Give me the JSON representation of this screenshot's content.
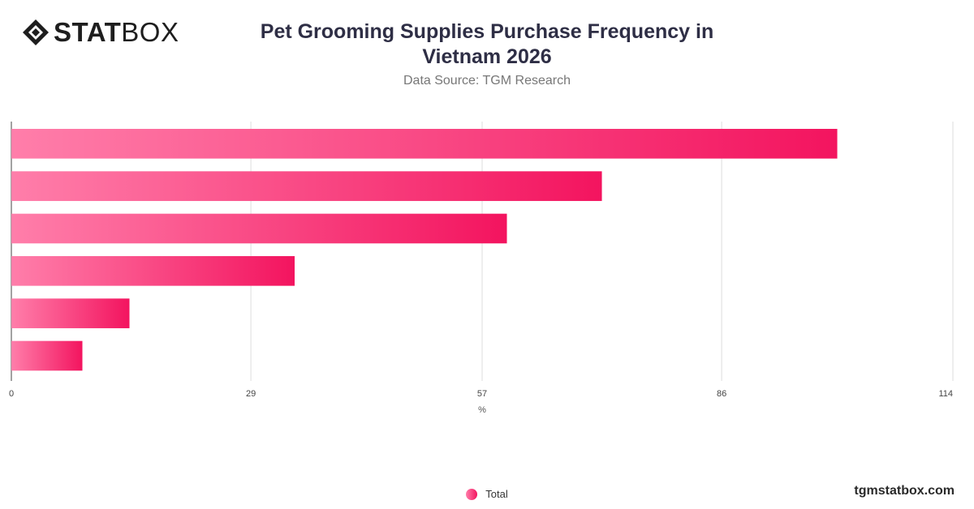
{
  "brand": {
    "name_bold": "STAT",
    "name_light": "BOX",
    "watermark": "tgmstatbox.com"
  },
  "header": {
    "title": "Pet Grooming Supplies Purchase Frequency in Vietnam 2026",
    "subtitle": "Data Source: TGM Research"
  },
  "colors": {
    "bar_start": "#ff7eaa",
    "bar_end": "#f3145f",
    "grid": "#dddddd",
    "axis": "#444444"
  },
  "chart_data": {
    "type": "bar",
    "orientation": "horizontal",
    "categories": [
      "",
      "",
      "",
      "",
      "",
      ""
    ],
    "series": [
      {
        "name": "Total",
        "values": [
          100,
          71.5,
          60,
          34.3,
          14.3,
          8.6
        ]
      }
    ],
    "xlabel": "%",
    "xlim": [
      0,
      114
    ],
    "xticks": [
      0,
      29,
      57,
      86,
      114
    ],
    "grid": true,
    "legend_position": "bottom-center"
  }
}
